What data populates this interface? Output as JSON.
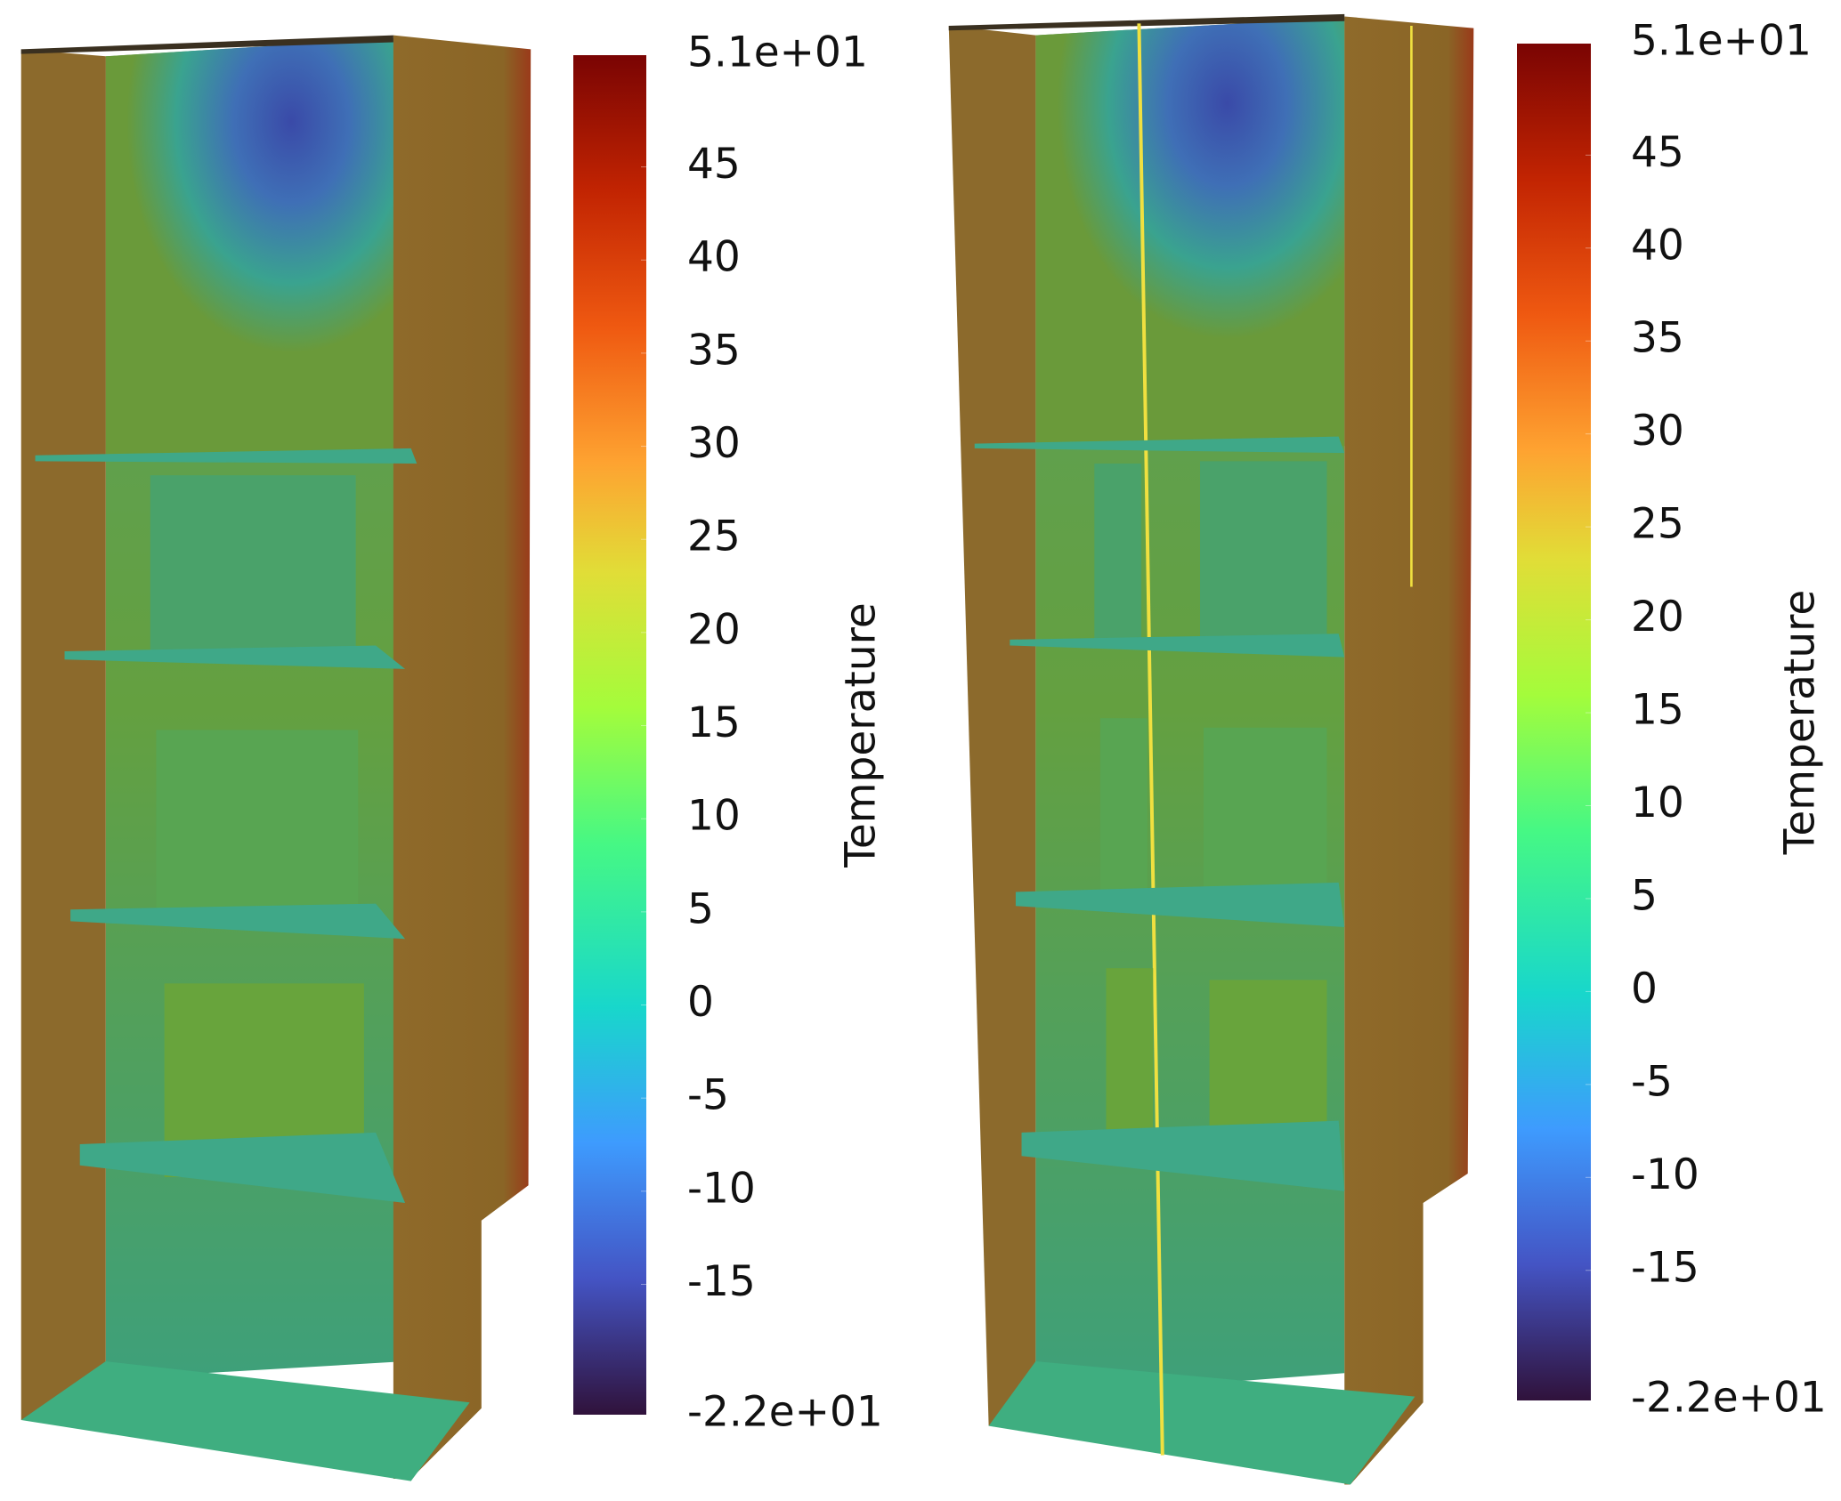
{
  "panels": [
    {
      "colorbar": {
        "title": "Temperature",
        "range": [
          {
            "value": -22,
            "label": "-2.2e+01"
          },
          {
            "value": 51,
            "label": "5.1e+01"
          }
        ],
        "ticks": [
          45,
          40,
          35,
          30,
          25,
          20,
          15,
          10,
          5,
          0,
          -5,
          -10,
          -15
        ]
      }
    },
    {
      "colorbar": {
        "title": "Temperature",
        "range": [
          {
            "value": -22,
            "label": "-2.2e+01"
          },
          {
            "value": 51,
            "label": "5.1e+01"
          }
        ],
        "ticks": [
          45,
          40,
          35,
          30,
          25,
          20,
          15,
          10,
          5,
          0,
          -5,
          -10,
          -15
        ]
      }
    }
  ]
}
